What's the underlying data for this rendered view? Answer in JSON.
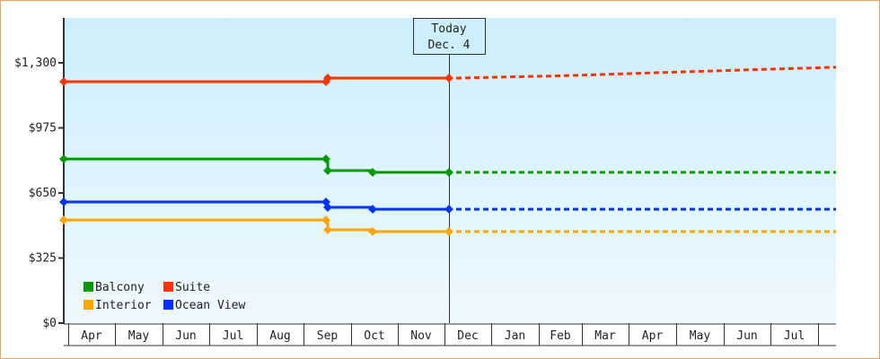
{
  "chart_data": {
    "type": "line",
    "title": "",
    "xlabel": "",
    "ylabel": "",
    "ylim": [
      0,
      1300
    ],
    "yticks": [
      "$0",
      "$325",
      "$650",
      "$975",
      "$1,300"
    ],
    "ytick_values": [
      0,
      325,
      650,
      975,
      1300
    ],
    "x_months": [
      "Apr",
      "May",
      "Jun",
      "Jul",
      "Aug",
      "Sep",
      "Oct",
      "Nov",
      "Dec",
      "Jan",
      "Feb",
      "Mar",
      "Apr",
      "May",
      "Jun",
      "Jul"
    ],
    "grid": false,
    "legend_position": "bottom-left inside",
    "today_marker": {
      "line1": "Today",
      "line2": "Dec. 4"
    },
    "series": [
      {
        "name": "Balcony",
        "color": "#009900",
        "historical": [
          {
            "date": "Apr 1",
            "value": 820
          },
          {
            "date": "Sep 1",
            "value": 820
          },
          {
            "date": "Sep 2",
            "value": 762
          },
          {
            "date": "Oct 1",
            "value": 753
          },
          {
            "date": "Dec 4",
            "value": 753
          }
        ],
        "forecast": [
          {
            "date": "Dec 4",
            "value": 753
          },
          {
            "date": "Jul end",
            "value": 753
          }
        ]
      },
      {
        "name": "Suite",
        "color": "#ff3300",
        "historical": [
          {
            "date": "Apr 1",
            "value": 1206
          },
          {
            "date": "Sep 1",
            "value": 1206
          },
          {
            "date": "Sep 2",
            "value": 1224
          },
          {
            "date": "Dec 4",
            "value": 1224
          }
        ],
        "forecast": [
          {
            "date": "Dec 4",
            "value": 1224
          },
          {
            "date": "Feb",
            "value": 1235
          },
          {
            "date": "Apr",
            "value": 1250
          },
          {
            "date": "Jun",
            "value": 1265
          },
          {
            "date": "Jul end",
            "value": 1278
          }
        ]
      },
      {
        "name": "Interior",
        "color": "#ffa500",
        "historical": [
          {
            "date": "Apr 1",
            "value": 515
          },
          {
            "date": "Sep 1",
            "value": 515
          },
          {
            "date": "Sep 2",
            "value": 466
          },
          {
            "date": "Oct 1",
            "value": 457
          },
          {
            "date": "Dec 4",
            "value": 457
          }
        ],
        "forecast": [
          {
            "date": "Dec 4",
            "value": 457
          },
          {
            "date": "Jul end",
            "value": 457
          }
        ]
      },
      {
        "name": "Ocean View",
        "color": "#0033ff",
        "historical": [
          {
            "date": "Apr 1",
            "value": 605
          },
          {
            "date": "Sep 1",
            "value": 605
          },
          {
            "date": "Sep 2",
            "value": 578
          },
          {
            "date": "Oct 1",
            "value": 569
          },
          {
            "date": "Dec 4",
            "value": 569
          }
        ],
        "forecast": [
          {
            "date": "Dec 4",
            "value": 569
          },
          {
            "date": "Jul end",
            "value": 569
          }
        ]
      }
    ]
  },
  "legend": {
    "items": [
      {
        "label": "Balcony",
        "color": "#009900"
      },
      {
        "label": "Suite",
        "color": "#ff3300"
      },
      {
        "label": "Interior",
        "color": "#ffa500"
      },
      {
        "label": "Ocean View",
        "color": "#0033ff"
      }
    ]
  }
}
